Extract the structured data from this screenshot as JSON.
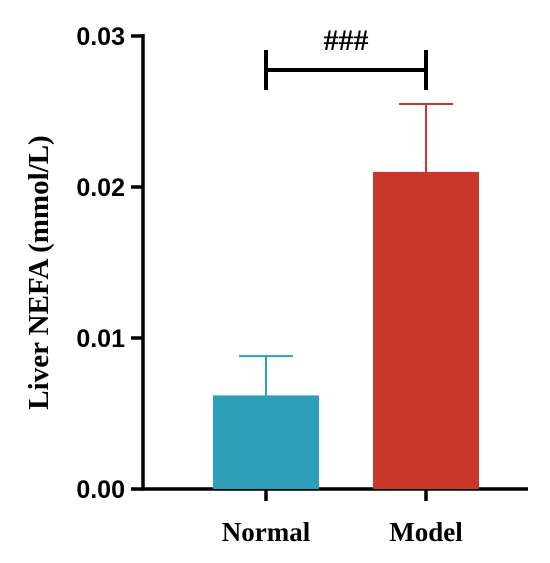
{
  "chart_data": {
    "type": "bar",
    "title": "",
    "xlabel": "",
    "ylabel": "Liver NEFA (mmol/L)",
    "ylim": [
      0,
      0.03
    ],
    "yticks": [
      "0.00",
      "0.01",
      "0.02",
      "0.03"
    ],
    "categories": [
      "Normal",
      "Model"
    ],
    "values": [
      0.0062,
      0.021
    ],
    "errors": [
      0.0026,
      0.0045
    ],
    "colors": [
      "#2e9fb8",
      "#c9372c"
    ],
    "significance": {
      "label": "###",
      "between": [
        0,
        1
      ]
    },
    "grid": false,
    "legend": "none"
  }
}
